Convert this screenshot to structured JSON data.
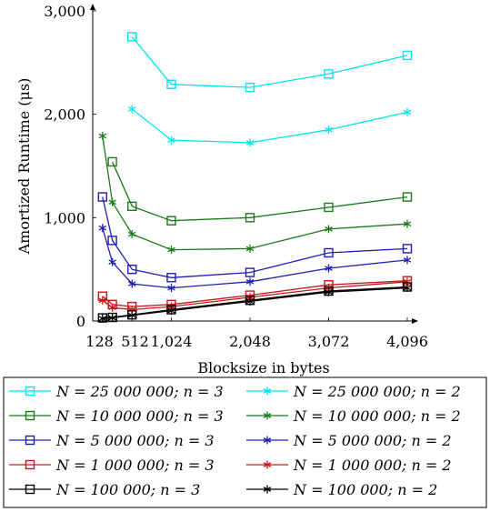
{
  "chart_data": {
    "type": "line",
    "title": "",
    "xlabel": "Blocksize in bytes",
    "ylabel": "Amortized Runtime (μs)",
    "xlim": [
      0,
      4096
    ],
    "ylim": [
      0,
      3000
    ],
    "x_ticks": [
      128,
      512,
      1024,
      2048,
      3072,
      4096
    ],
    "x_tick_labels": [
      "128",
      "512",
      "1,024",
      "2,048",
      "3,072",
      "4,096"
    ],
    "y_ticks": [
      0,
      1000,
      2000,
      3000
    ],
    "y_tick_labels": [
      "0",
      "1,000",
      "2,000",
      "3,000"
    ],
    "grid": false,
    "legend_position": "bottom",
    "series": [
      {
        "name": "N = 25 000 000; n = 3",
        "color": "#00e5ee",
        "marker": "square",
        "x": [
          512,
          1024,
          2048,
          3072,
          4096
        ],
        "y": [
          2750,
          2290,
          2260,
          2390,
          2570
        ]
      },
      {
        "name": "N = 25 000 000; n = 2",
        "color": "#00e5ee",
        "marker": "star",
        "x": [
          512,
          1024,
          2048,
          3072,
          4096
        ],
        "y": [
          2050,
          1750,
          1725,
          1850,
          2020
        ]
      },
      {
        "name": "N = 10 000 000; n = 3",
        "color": "#1a7a1a",
        "marker": "square",
        "x": [
          256,
          512,
          1024,
          2048,
          3072,
          4096
        ],
        "y": [
          1540,
          1110,
          970,
          1000,
          1100,
          1200
        ]
      },
      {
        "name": "N = 10 000 000; n = 2",
        "color": "#1a7a1a",
        "marker": "star",
        "x": [
          128,
          256,
          512,
          1024,
          2048,
          3072,
          4096
        ],
        "y": [
          1790,
          1150,
          840,
          690,
          700,
          890,
          940
        ]
      },
      {
        "name": "N = 5 000 000; n = 3",
        "color": "#1f1fb3",
        "marker": "square",
        "x": [
          128,
          256,
          512,
          1024,
          2048,
          3072,
          4096
        ],
        "y": [
          1200,
          780,
          500,
          420,
          470,
          660,
          700
        ]
      },
      {
        "name": "N = 5 000 000; n = 2",
        "color": "#1f1fb3",
        "marker": "star",
        "x": [
          128,
          256,
          512,
          1024,
          2048,
          3072,
          4096
        ],
        "y": [
          900,
          570,
          360,
          320,
          380,
          510,
          590
        ]
      },
      {
        "name": "N = 1 000 000; n = 3",
        "color": "#c41a1a",
        "marker": "square",
        "x": [
          128,
          256,
          512,
          1024,
          2048,
          3072,
          4096
        ],
        "y": [
          240,
          160,
          140,
          160,
          250,
          350,
          390
        ]
      },
      {
        "name": "N = 1 000 000; n = 2",
        "color": "#c41a1a",
        "marker": "star",
        "x": [
          128,
          256,
          512,
          1024,
          2048,
          3072,
          4096
        ],
        "y": [
          200,
          130,
          110,
          140,
          230,
          320,
          380
        ]
      },
      {
        "name": "N = 100 000; n = 3",
        "color": "#000000",
        "marker": "square",
        "x": [
          128,
          256,
          512,
          1024,
          2048,
          3072,
          4096
        ],
        "y": [
          30,
          35,
          60,
          110,
          200,
          290,
          330
        ]
      },
      {
        "name": "N = 100 000; n = 2",
        "color": "#000000",
        "marker": "star",
        "x": [
          128,
          256,
          512,
          1024,
          2048,
          3072,
          4096
        ],
        "y": [
          25,
          30,
          55,
          100,
          190,
          280,
          320
        ]
      }
    ]
  }
}
